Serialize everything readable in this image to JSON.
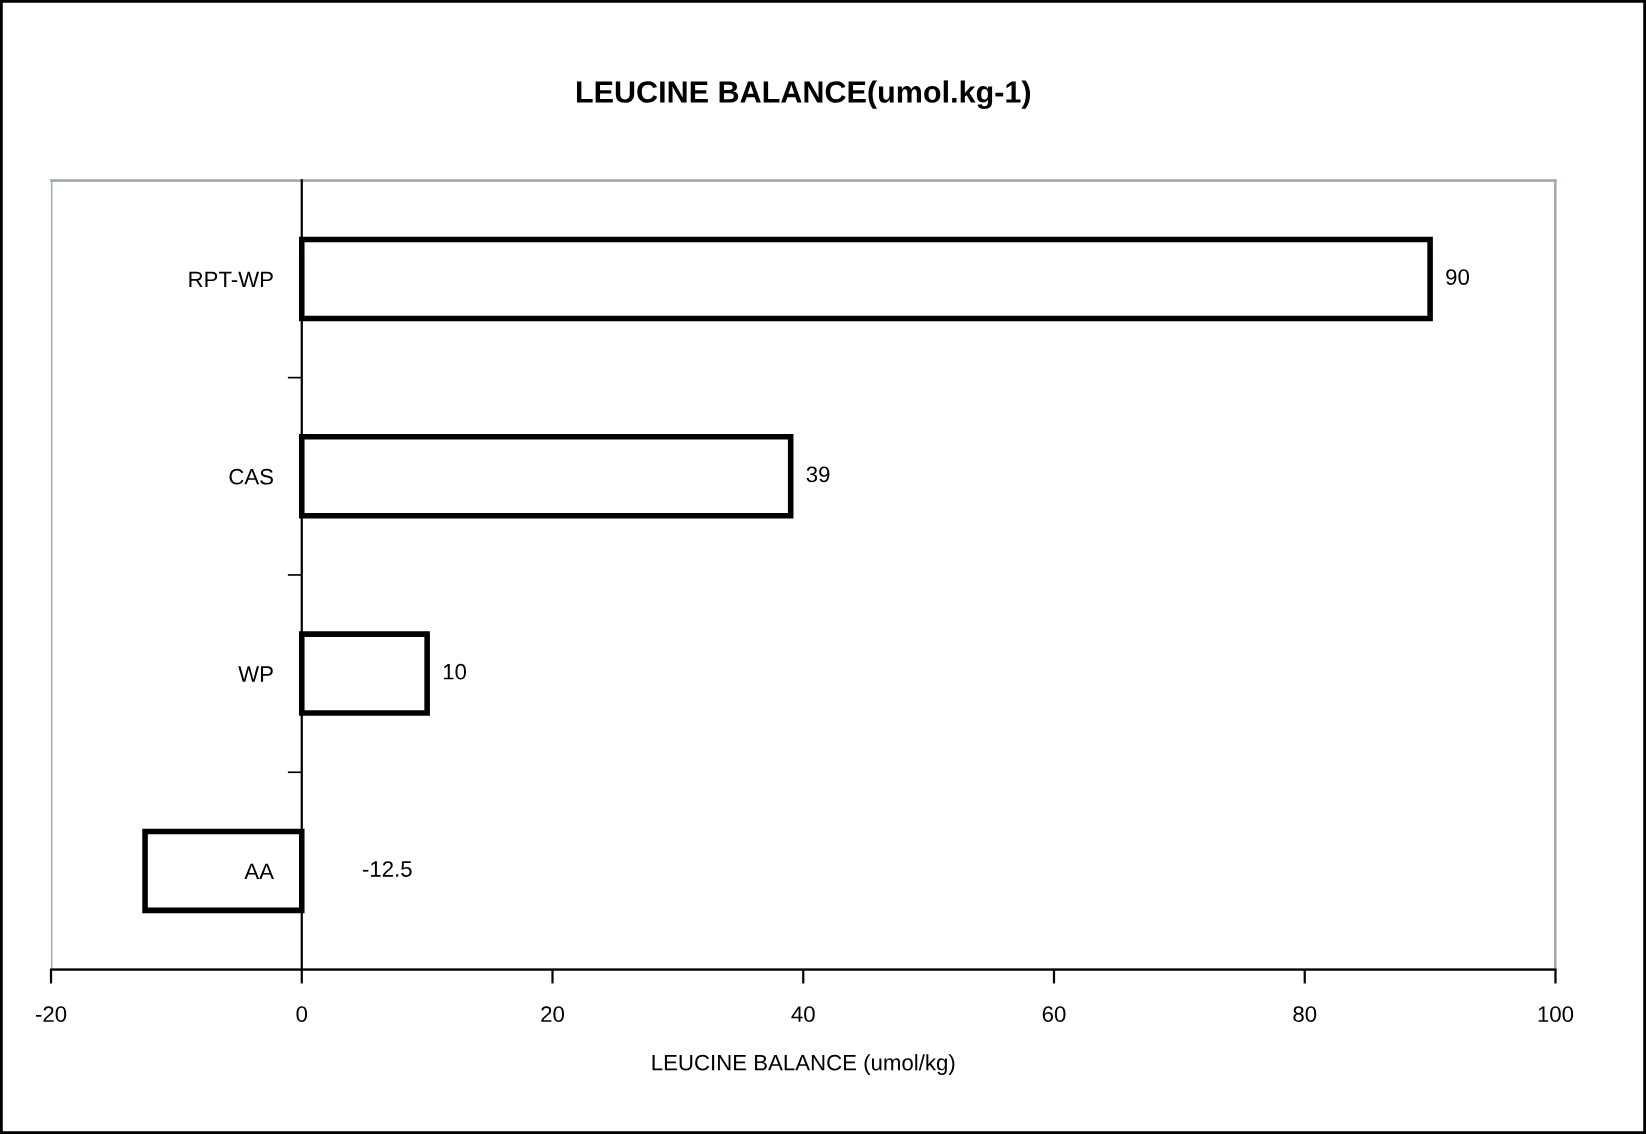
{
  "chart_data": {
    "type": "bar",
    "orientation": "horizontal",
    "title": "LEUCINE BALANCE(umol.kg-1)",
    "xlabel": "LEUCINE BALANCE (umol/kg)",
    "categories": [
      "RPT-WP",
      "CAS",
      "WP",
      "AA"
    ],
    "values": [
      90,
      39,
      10,
      -12.5
    ],
    "color": "#ffffff",
    "xlim": [
      -20,
      100
    ],
    "xticks": [
      -20,
      0,
      20,
      40,
      60,
      80,
      100
    ],
    "grid": false,
    "data_labels": true
  }
}
